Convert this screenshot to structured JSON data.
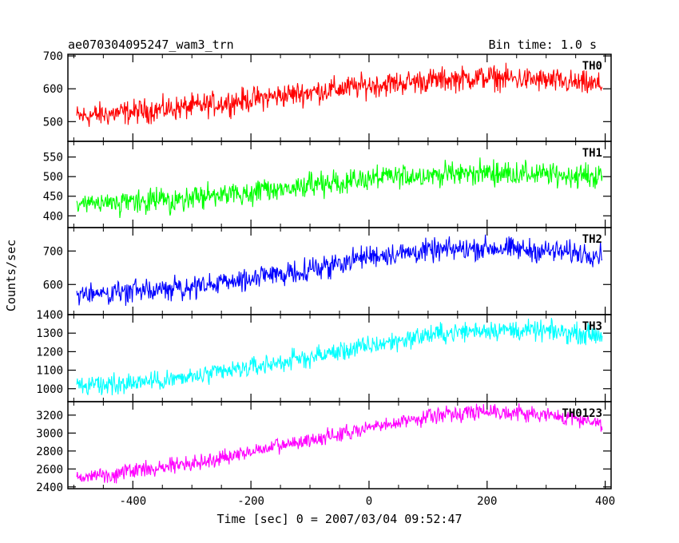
{
  "header": {
    "title": "ae070304095247_wam3_trn",
    "bin_time": "Bin time: 1.0 s"
  },
  "xlabel": "Time [sec] 0 = 2007/03/04 09:52:47",
  "ylabel": "Counts/sec",
  "chart_data": [
    {
      "type": "line",
      "name": "TH0",
      "color": "#ff0000",
      "xlim": [
        -510,
        410
      ],
      "ylim": [
        440,
        705
      ],
      "yticks": [
        500,
        600,
        700
      ],
      "trend": {
        "x": [
          -495,
          -300,
          -100,
          0,
          100,
          200,
          300,
          395
        ],
        "y": [
          515,
          545,
          590,
          610,
          625,
          635,
          625,
          610
        ]
      },
      "noise_amplitude": 55
    },
    {
      "type": "line",
      "name": "TH1",
      "color": "#00ff00",
      "xlim": [
        -510,
        410
      ],
      "ylim": [
        370,
        590
      ],
      "yticks": [
        400,
        450,
        500,
        550
      ],
      "trend": {
        "x": [
          -495,
          -300,
          -100,
          0,
          100,
          200,
          300,
          395
        ],
        "y": [
          425,
          445,
          475,
          495,
          505,
          510,
          505,
          500
        ]
      },
      "noise_amplitude": 45
    },
    {
      "type": "line",
      "name": "TH2",
      "color": "#0000ff",
      "xlim": [
        -510,
        410
      ],
      "ylim": [
        510,
        770
      ],
      "yticks": [
        600,
        700
      ],
      "trend": {
        "x": [
          -495,
          -300,
          -100,
          0,
          100,
          200,
          300,
          395
        ],
        "y": [
          570,
          590,
          645,
          685,
          700,
          710,
          700,
          690
        ]
      },
      "noise_amplitude": 50
    },
    {
      "type": "line",
      "name": "TH3",
      "color": "#00ffff",
      "xlim": [
        -510,
        410
      ],
      "ylim": [
        930,
        1400
      ],
      "yticks": [
        1000,
        1100,
        1200,
        1300,
        1400
      ],
      "trend": {
        "x": [
          -495,
          -300,
          -100,
          0,
          100,
          200,
          300,
          395
        ],
        "y": [
          1010,
          1060,
          1170,
          1230,
          1290,
          1320,
          1310,
          1290
        ]
      },
      "noise_amplitude": 80
    },
    {
      "type": "line",
      "name": "TH0123",
      "color": "#ff00ff",
      "xlim": [
        -510,
        410
      ],
      "ylim": [
        2380,
        3350
      ],
      "yticks": [
        2400,
        2600,
        2800,
        3000,
        3200
      ],
      "trend": {
        "x": [
          -495,
          -300,
          -100,
          0,
          100,
          200,
          300,
          395
        ],
        "y": [
          2500,
          2660,
          2920,
          3050,
          3190,
          3250,
          3200,
          3120
        ]
      },
      "noise_amplitude": 130
    }
  ],
  "xticks": [
    -400,
    -200,
    0,
    200,
    400
  ]
}
